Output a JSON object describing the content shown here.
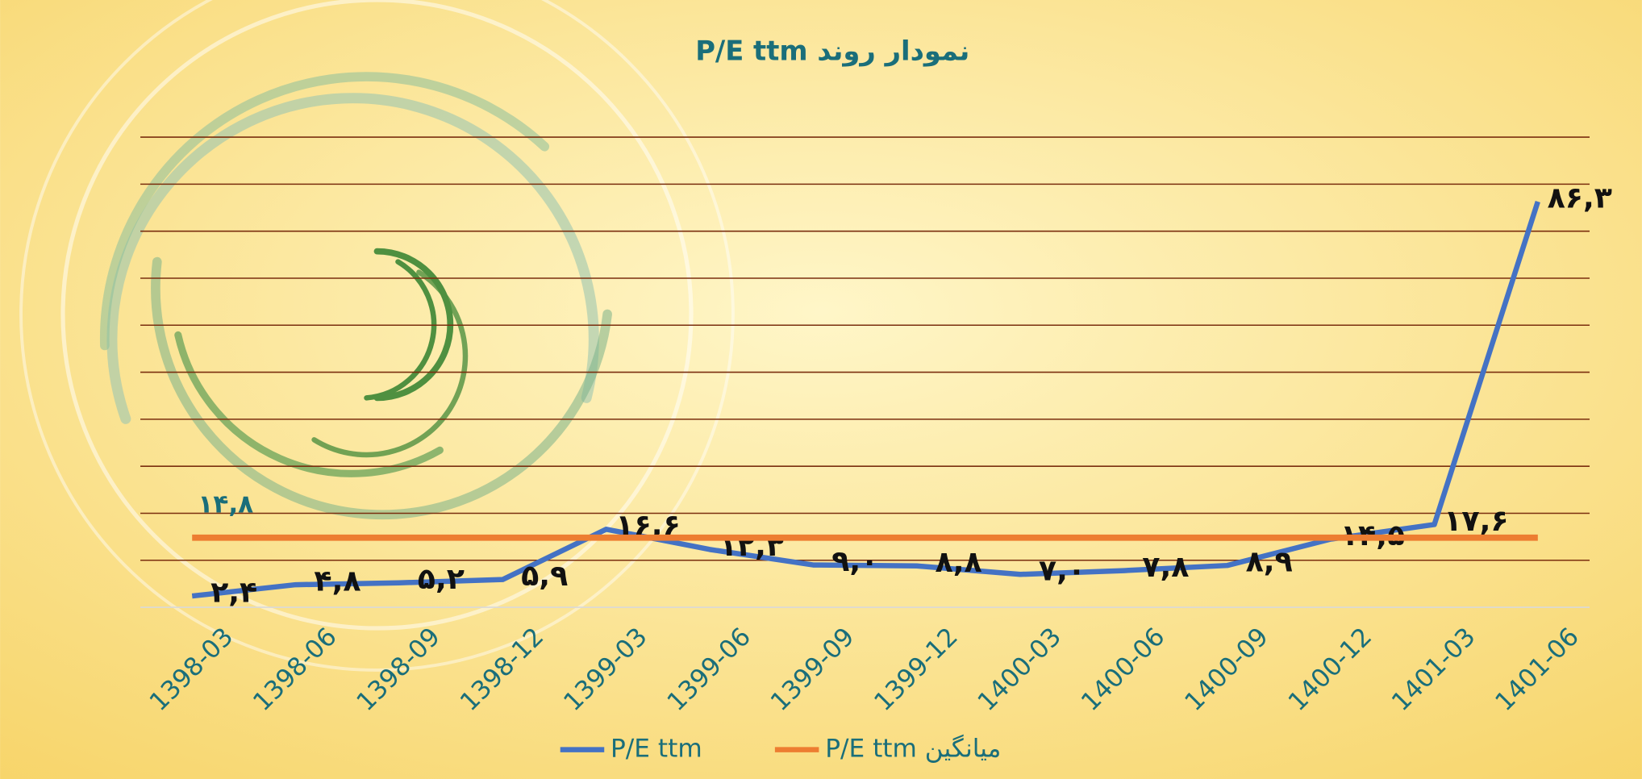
{
  "chart_data": {
    "type": "line",
    "title": "نمودار روند P/E ttm",
    "categories": [
      "1398-03",
      "1398-06",
      "1398-09",
      "1398-12",
      "1399-03",
      "1399-06",
      "1399-09",
      "1399-12",
      "1400-03",
      "1400-06",
      "1400-09",
      "1400-12",
      "1401-03",
      "1401-06"
    ],
    "series": [
      {
        "name": "P/E ttm",
        "color": "#4472c4",
        "values": [
          2.4,
          4.8,
          5.2,
          5.9,
          16.6,
          12.3,
          9.0,
          8.8,
          7.0,
          7.8,
          8.9,
          14.5,
          17.6,
          86.3
        ],
        "value_labels": [
          "۲,۴",
          "۴,۸",
          "۵,۲",
          "۵,۹",
          "۱۶,۶",
          "۱۲,۳",
          "۹,۰",
          "۸,۸",
          "۷,۰",
          "۷,۸",
          "۸,۹",
          "۱۴,۵",
          "۱۷,۶",
          "۸۶,۳"
        ]
      },
      {
        "name": "میانگین P/E ttm",
        "color": "#ed7d31",
        "values": [
          14.8,
          14.8,
          14.8,
          14.8,
          14.8,
          14.8,
          14.8,
          14.8,
          14.8,
          14.8,
          14.8,
          14.8,
          14.8,
          14.8
        ],
        "value_labels": [
          "۱۴,۸",
          null,
          null,
          null,
          null,
          null,
          null,
          null,
          null,
          null,
          null,
          null,
          null,
          null
        ]
      }
    ],
    "ylim": [
      0,
      100
    ],
    "yticks": [
      0,
      10,
      20,
      30,
      40,
      50,
      60,
      70,
      80,
      90,
      100
    ],
    "grid": true
  }
}
